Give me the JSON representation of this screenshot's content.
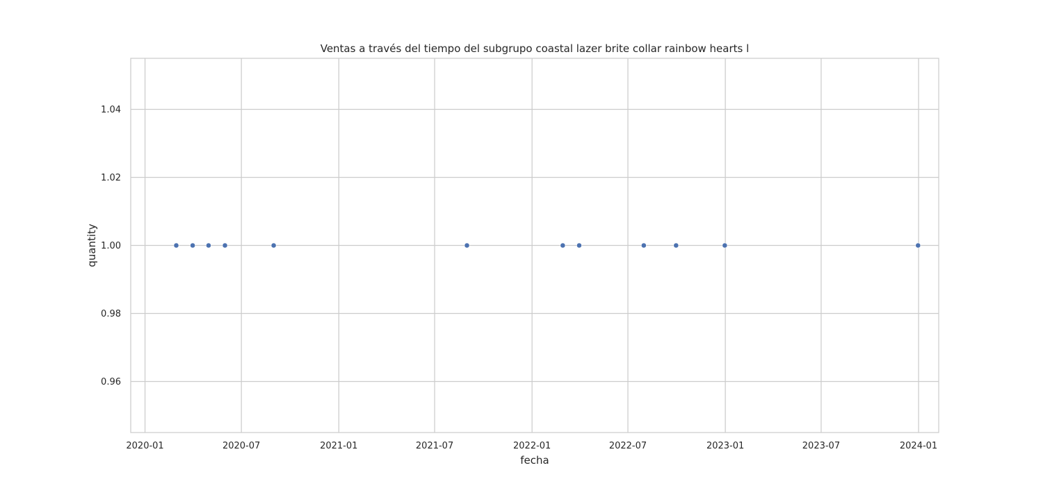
{
  "chart_data": {
    "type": "scatter",
    "title": "Ventas a través del tiempo del subgrupo coastal lazer brite collar rainbow hearts l",
    "xlabel": "fecha",
    "ylabel": "quantity",
    "x_scale": "date",
    "xlim": [
      "2019-12-05",
      "2024-02-08"
    ],
    "ylim": [
      0.945,
      1.055
    ],
    "x_ticks": [
      "2020-01",
      "2020-07",
      "2021-01",
      "2021-07",
      "2022-01",
      "2022-07",
      "2023-01",
      "2023-07",
      "2024-01"
    ],
    "y_ticks": [
      "0.96",
      "0.98",
      "1.00",
      "1.02",
      "1.04"
    ],
    "grid": true,
    "marker_color": "#4c72b0",
    "points": [
      {
        "x": "2020-02-29",
        "y": 1
      },
      {
        "x": "2020-03-31",
        "y": 1
      },
      {
        "x": "2020-04-30",
        "y": 1
      },
      {
        "x": "2020-05-31",
        "y": 1
      },
      {
        "x": "2020-08-31",
        "y": 1
      },
      {
        "x": "2021-08-31",
        "y": 1
      },
      {
        "x": "2022-02-28",
        "y": 1
      },
      {
        "x": "2022-03-31",
        "y": 1
      },
      {
        "x": "2022-07-31",
        "y": 1
      },
      {
        "x": "2022-09-30",
        "y": 1
      },
      {
        "x": "2022-12-31",
        "y": 1
      },
      {
        "x": "2023-12-31",
        "y": 1
      }
    ]
  }
}
